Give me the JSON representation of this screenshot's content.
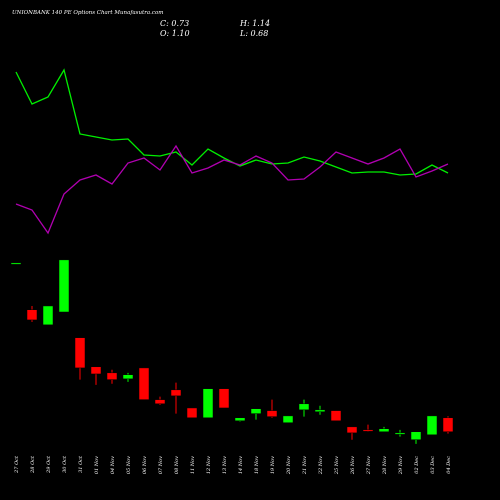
{
  "chart_data": {
    "type": "candlestick",
    "title": "UNIONBANK 140 PE Options Chart Munafasutra.com",
    "ohlc_labels": [
      "C: 0.73",
      "H: 1.14",
      "O: 1.10",
      "L: 0.68"
    ],
    "categories": [
      "27 Oct",
      "28 Oct",
      "29 Oct",
      "30 Oct",
      "31 Oct",
      "01 Nov",
      "04 Nov",
      "05 Nov",
      "06 Nov",
      "07 Nov",
      "08 Nov",
      "11 Nov",
      "12 Nov",
      "13 Nov",
      "14 Nov",
      "18 Nov",
      "19 Nov",
      "20 Nov",
      "21 Nov",
      "22 Nov",
      "25 Nov",
      "26 Nov",
      "27 Nov",
      "28 Nov",
      "29 Nov",
      "02 Dec",
      "03 Dec",
      "04 Dec"
    ],
    "open": [
      5.2,
      3.96,
      3.56,
      3.9,
      3.22,
      2.45,
      2.29,
      2.13,
      2.42,
      1.58,
      1.84,
      1.36,
      1.1,
      1.87,
      1.02,
      1.21,
      1.29,
      0.97,
      1.31,
      1.26,
      1.29,
      0.86,
      0.78,
      0.73,
      0.68,
      0.52,
      0.65,
      1.1
    ],
    "high": [
      5.2,
      4.06,
      4.06,
      5.28,
      3.22,
      2.45,
      2.37,
      2.29,
      2.42,
      1.66,
      2.03,
      1.36,
      1.87,
      1.87,
      1.1,
      1.34,
      1.58,
      1.15,
      1.58,
      1.42,
      1.29,
      0.86,
      0.92,
      0.86,
      0.78,
      0.73,
      1.15,
      1.14
    ],
    "low": [
      5.2,
      3.64,
      3.56,
      3.9,
      2.11,
      1.97,
      2.0,
      2.05,
      1.58,
      1.44,
      1.21,
      1.1,
      1.1,
      1.36,
      1.0,
      1.05,
      1.1,
      0.97,
      1.13,
      1.18,
      1.02,
      0.52,
      0.73,
      0.73,
      0.6,
      0.41,
      0.65,
      0.68
    ],
    "close": [
      5.2,
      3.69,
      4.06,
      5.28,
      2.42,
      2.26,
      2.11,
      2.24,
      1.58,
      1.47,
      1.68,
      1.1,
      1.87,
      1.36,
      1.1,
      1.34,
      1.13,
      1.15,
      1.47,
      1.31,
      1.02,
      0.7,
      0.76,
      0.81,
      0.7,
      0.73,
      1.15,
      0.73
    ],
    "ylim": [
      0.3,
      5.7
    ],
    "up_color": "#00ff00",
    "down_color": "#ff0000",
    "lines": [
      {
        "color": "#00ee00",
        "values": [
          84,
          68,
          71.5,
          85,
          53,
          51.5,
          50,
          50.5,
          42.5,
          42,
          44,
          37.5,
          45.5,
          41,
          37,
          40,
          38,
          38.5,
          41.5,
          39.5,
          36.5,
          33.5,
          34,
          34,
          32.5,
          33,
          37.5,
          33.5
        ]
      },
      {
        "color": "#b000b0",
        "values": [
          18,
          15,
          3.5,
          23,
          30,
          32.5,
          28,
          38.5,
          41,
          35,
          47,
          33.5,
          36,
          40,
          37.5,
          42,
          38.5,
          30,
          30.5,
          36.5,
          44,
          41,
          38,
          41,
          45.5,
          31.5,
          34.5,
          38
        ]
      }
    ],
    "line_ylim": [
      0,
      100
    ]
  }
}
